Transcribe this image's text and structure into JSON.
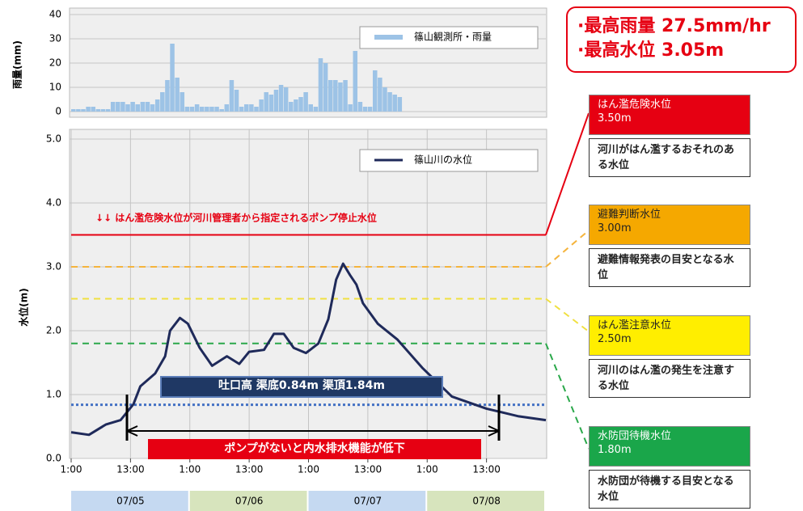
{
  "chart_data": [
    {
      "type": "bar",
      "ylabel": "雨量(mm)",
      "name": "篠山観測所・雨量",
      "color": "#9dc3e6",
      "x": [
        0,
        1,
        2,
        3,
        4,
        5,
        6,
        7,
        8,
        9,
        10,
        11,
        12,
        13,
        14,
        15,
        16,
        17,
        18,
        19,
        20,
        21,
        22,
        23,
        24,
        25,
        26,
        27,
        28,
        29,
        30,
        31,
        32,
        33,
        34,
        35,
        36,
        37,
        38,
        39,
        40,
        41,
        42,
        43,
        44,
        45,
        46,
        47,
        48,
        49,
        50,
        51,
        52,
        53,
        54,
        55,
        56,
        57,
        58,
        59,
        60,
        61,
        62,
        63,
        64,
        65,
        66
      ],
      "values": [
        1,
        1,
        1,
        2,
        2,
        1,
        1,
        1,
        4,
        4,
        4,
        3,
        4,
        3,
        4,
        4,
        3,
        5,
        8,
        13,
        28,
        14,
        8,
        2,
        2,
        3,
        2,
        2,
        2,
        2,
        1,
        3,
        13,
        9,
        2,
        3,
        3,
        2,
        5,
        8,
        7,
        9,
        11,
        10,
        4,
        5,
        6,
        8,
        3,
        2,
        22,
        20,
        13,
        13,
        12,
        13,
        3,
        25,
        4,
        2,
        2,
        17,
        14,
        10,
        8,
        7,
        6
      ],
      "xlim": [
        0,
        96
      ],
      "ylim": [
        0,
        40
      ],
      "yticks": [
        0,
        10,
        20,
        30,
        40
      ],
      "grid": true
    },
    {
      "type": "line",
      "ylabel": "水位(m)",
      "name": "篠山川の水位",
      "color": "#1f2a5a",
      "x": [
        0,
        3.6,
        7,
        10,
        12.6,
        14,
        17,
        19,
        20,
        22,
        23.6,
        26,
        28.5,
        31.5,
        34,
        36,
        39,
        41,
        43,
        45,
        47.5,
        50,
        52,
        53.6,
        55,
        56.4,
        57.7,
        59,
        62,
        66,
        71,
        77,
        84,
        90.5,
        96
      ],
      "values": [
        0.41,
        0.37,
        0.53,
        0.6,
        0.85,
        1.13,
        1.33,
        1.6,
        2.0,
        2.2,
        2.11,
        1.73,
        1.45,
        1.6,
        1.48,
        1.67,
        1.7,
        1.95,
        1.95,
        1.73,
        1.65,
        1.8,
        2.18,
        2.8,
        3.05,
        2.87,
        2.72,
        2.43,
        2.11,
        1.86,
        1.42,
        0.97,
        0.78,
        0.66,
        0.6
      ],
      "xlim": [
        0,
        96
      ],
      "xticks": [
        {
          "value": 0,
          "label": "1:00"
        },
        {
          "value": 12,
          "label": "13:00"
        },
        {
          "value": 24,
          "label": "1:00"
        },
        {
          "value": 36,
          "label": "13:00"
        },
        {
          "value": 48,
          "label": "1:00"
        },
        {
          "value": 60,
          "label": "13:00"
        },
        {
          "value": 72,
          "label": "1:00"
        },
        {
          "value": 84,
          "label": "13:00"
        }
      ],
      "ylim": [
        0,
        5
      ],
      "yticks": [
        {
          "value": 0,
          "label": "0.0"
        },
        {
          "value": 1,
          "label": "1.0"
        },
        {
          "value": 2,
          "label": "2.0"
        },
        {
          "value": 3,
          "label": "3.0"
        },
        {
          "value": 4,
          "label": "4.0"
        },
        {
          "value": 5,
          "label": "5.0"
        }
      ],
      "grid": true,
      "days": [
        {
          "label": "07/05",
          "color": "#c5d9f1"
        },
        {
          "label": "07/06",
          "color": "#d7e4bd"
        },
        {
          "label": "07/07",
          "color": "#c5d9f1"
        },
        {
          "label": "07/08",
          "color": "#d7e4bd"
        }
      ],
      "levels": [
        {
          "name": "はん濫危険水位",
          "value": 3.5,
          "value_label": "3.50m",
          "color": "#e60012",
          "text_color": "#ffffff",
          "line_color": "#e60012",
          "description": "河川がはん濫するおそれのある水位"
        },
        {
          "name": "避難判断水位",
          "value": 3.0,
          "value_label": "3.00m",
          "color": "#f5a800",
          "text_color": "#222222",
          "line_color": "#f5b43c",
          "description": "避難情報発表の目安となる水位"
        },
        {
          "name": "はん濫注意水位",
          "value": 2.5,
          "value_label": "2.50m",
          "color": "#ffee00",
          "text_color": "#222222",
          "line_color": "#f0e040",
          "description": "河川のはん濫の発生を注意する水位"
        },
        {
          "name": "水防団待機水位",
          "value": 1.8,
          "value_label": "1.80m",
          "color": "#1aa64a",
          "text_color": "#ffffff",
          "line_color": "#2aa84a",
          "description": "水防団が待機する目安となる水位"
        }
      ],
      "stop_note": "↓↓ はん濫危険水位が河川管理者から指定されるポンプ停止水位",
      "outlet": {
        "label": "吐口高 渠底0.84m 渠頂1.84m",
        "value": 0.84,
        "color": "#4472c4"
      },
      "pump_note": "ポンプがないと内水排水機能が低下",
      "summary": [
        "·最高雨量 27.5mm/hr",
        "·最高水位 3.05m"
      ]
    }
  ]
}
